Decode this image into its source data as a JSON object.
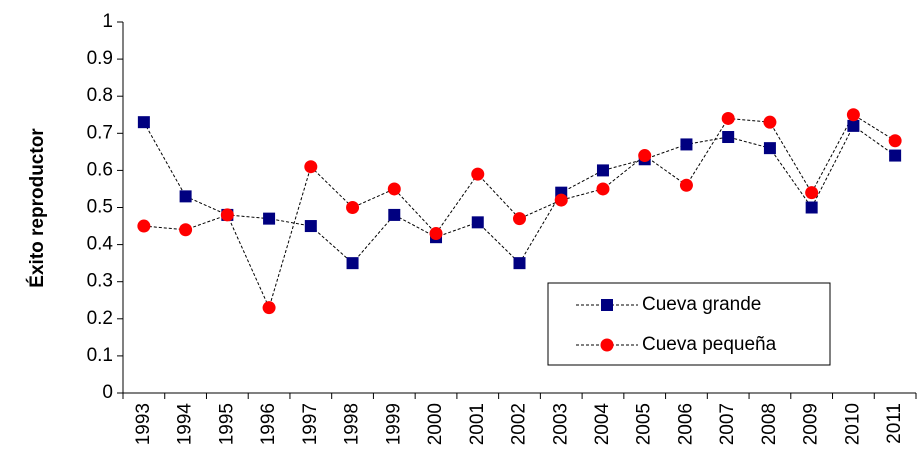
{
  "chart_data": {
    "type": "line",
    "y_label": "Éxito reproductor",
    "categories": [
      "1993",
      "1994",
      "1995",
      "1996",
      "1997",
      "1998",
      "1999",
      "2000",
      "2001",
      "2002",
      "2003",
      "2004",
      "2005",
      "2006",
      "2007",
      "2008",
      "2009",
      "2010",
      "2011"
    ],
    "series": [
      {
        "name": "Cueva grande",
        "color": "#000080",
        "marker": "square",
        "values": [
          0.73,
          0.53,
          0.48,
          0.47,
          0.45,
          0.35,
          0.48,
          0.42,
          0.46,
          0.35,
          0.54,
          0.6,
          0.63,
          0.67,
          0.69,
          0.66,
          0.5,
          0.72,
          0.64
        ]
      },
      {
        "name": "Cueva pequeña",
        "color": "#ff0000",
        "marker": "circle",
        "values": [
          0.45,
          0.44,
          0.48,
          0.23,
          0.61,
          0.5,
          0.55,
          0.43,
          0.59,
          0.47,
          0.52,
          0.55,
          0.64,
          0.56,
          0.74,
          0.73,
          0.54,
          0.75,
          0.68
        ]
      }
    ],
    "ylim": [
      0,
      1
    ],
    "yticks": [
      0,
      0.1,
      0.2,
      0.3,
      0.4,
      0.5,
      0.6,
      0.7,
      0.8,
      0.9,
      1
    ],
    "grid": false,
    "legend": "lower right"
  }
}
